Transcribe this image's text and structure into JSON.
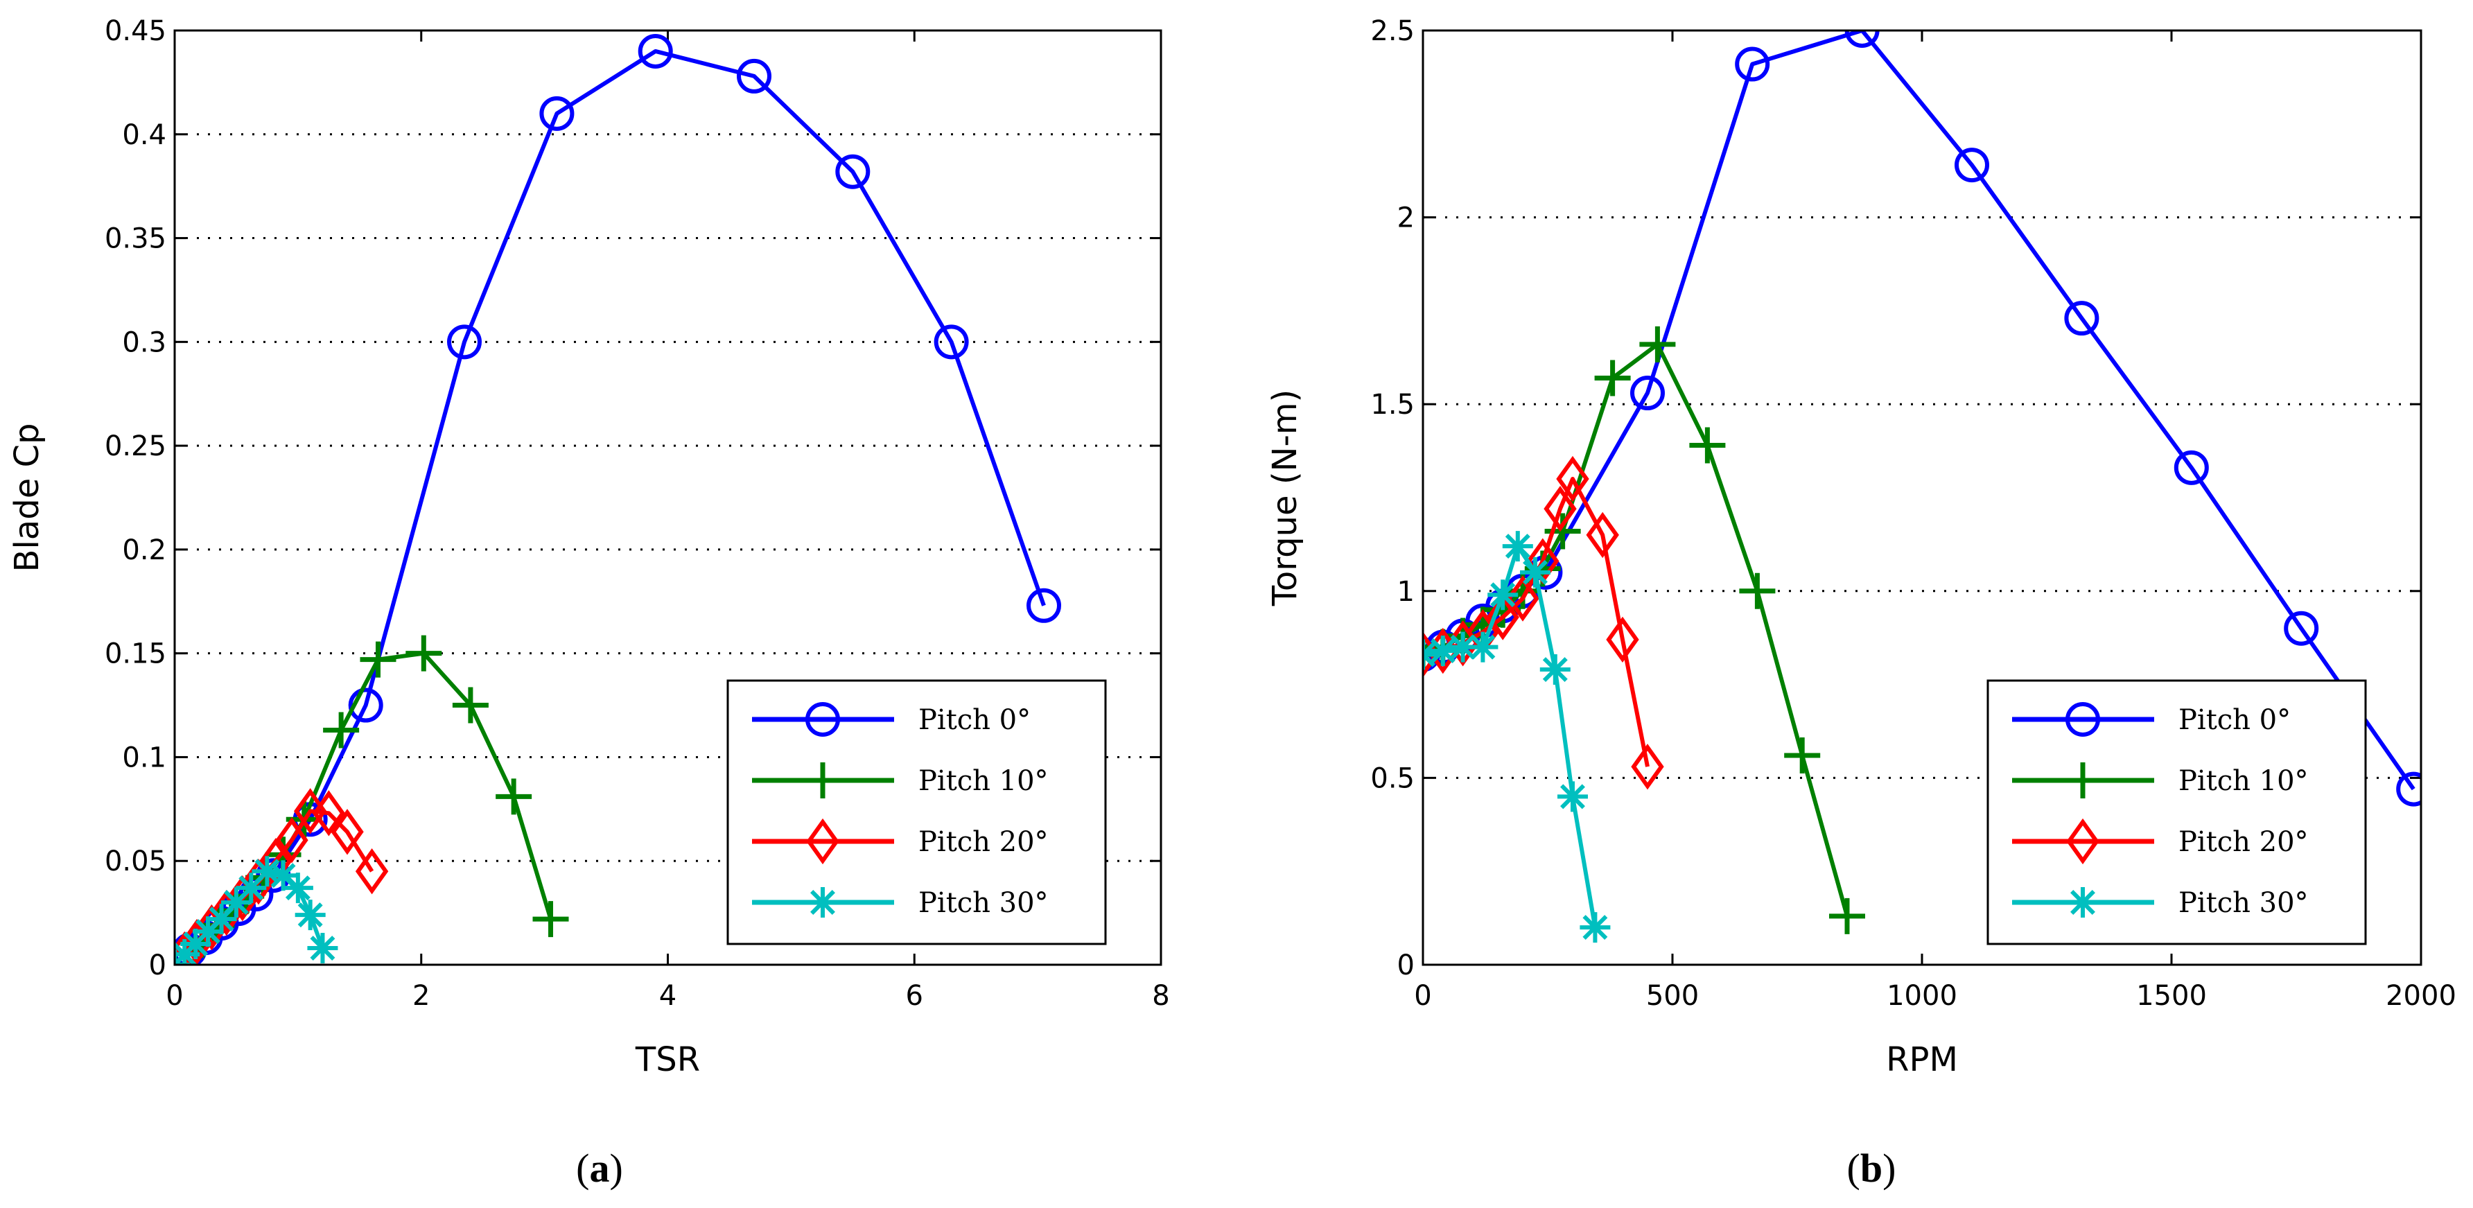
{
  "chart_data": [
    {
      "type": "line",
      "panel_label": "a",
      "xlabel": "TSR",
      "ylabel": "Blade Cp",
      "xlim": [
        0,
        8
      ],
      "ylim": [
        0,
        0.45
      ],
      "xticks": [
        "0",
        "2",
        "4",
        "6",
        "8"
      ],
      "yticks": [
        "0",
        "0.05",
        "0.1",
        "0.15",
        "0.2",
        "0.25",
        "0.3",
        "0.35",
        "0.4",
        "0.45"
      ],
      "grid": "horizontal dotted",
      "legend_position": "bottom-right",
      "series": [
        {
          "name": "Pitch 0°",
          "color": "#0000ff",
          "marker": "circle",
          "x": [
            0,
            0.12,
            0.25,
            0.38,
            0.52,
            0.66,
            0.8,
            1.1,
            1.55,
            2.35,
            3.1,
            3.9,
            4.7,
            5.5,
            6.3,
            7.05
          ],
          "y": [
            0,
            0.007,
            0.013,
            0.02,
            0.027,
            0.034,
            0.043,
            0.07,
            0.125,
            0.3,
            0.41,
            0.44,
            0.428,
            0.382,
            0.3,
            0.173
          ]
        },
        {
          "name": "Pitch 10°",
          "color": "#008000",
          "marker": "plus",
          "x": [
            0,
            0.1,
            0.22,
            0.34,
            0.46,
            0.58,
            0.72,
            0.88,
            1.05,
            1.35,
            1.65,
            2.02,
            2.4,
            2.75,
            3.05
          ],
          "y": [
            0,
            0.006,
            0.012,
            0.019,
            0.026,
            0.033,
            0.042,
            0.053,
            0.07,
            0.113,
            0.147,
            0.15,
            0.125,
            0.081,
            0.022
          ]
        },
        {
          "name": "Pitch 20°",
          "color": "#ff0000",
          "marker": "diamond",
          "x": [
            0,
            0.08,
            0.18,
            0.3,
            0.42,
            0.55,
            0.68,
            0.82,
            0.95,
            1.1,
            1.25,
            1.4,
            1.6
          ],
          "y": [
            0,
            0.005,
            0.011,
            0.018,
            0.025,
            0.032,
            0.04,
            0.05,
            0.06,
            0.074,
            0.073,
            0.064,
            0.045
          ]
        },
        {
          "name": "Pitch 30°",
          "color": "#00bfbf",
          "marker": "star",
          "x": [
            0,
            0.08,
            0.17,
            0.27,
            0.38,
            0.5,
            0.62,
            0.75,
            0.88,
            1.0,
            1.1,
            1.2
          ],
          "y": [
            0,
            0.005,
            0.01,
            0.016,
            0.022,
            0.03,
            0.037,
            0.045,
            0.043,
            0.037,
            0.024,
            0.008
          ]
        }
      ]
    },
    {
      "type": "line",
      "panel_label": "b",
      "xlabel": "RPM",
      "ylabel": "Torque (N-m)",
      "xlim": [
        0,
        2000
      ],
      "ylim": [
        0,
        2.5
      ],
      "xticks": [
        "0",
        "500",
        "1000",
        "1500",
        "2000"
      ],
      "yticks": [
        "0",
        "0.5",
        "1",
        "1.5",
        "2",
        "2.5"
      ],
      "grid": "horizontal dotted",
      "legend_position": "bottom-right",
      "series": [
        {
          "name": "Pitch 0°",
          "color": "#0000ff",
          "marker": "circle",
          "x": [
            0,
            40,
            80,
            120,
            160,
            200,
            245,
            450,
            660,
            880,
            1100,
            1320,
            1540,
            1760,
            1985
          ],
          "y": [
            0.83,
            0.85,
            0.88,
            0.92,
            0.96,
            1.0,
            1.05,
            1.53,
            2.41,
            2.5,
            2.14,
            1.73,
            1.33,
            0.9,
            0.47
          ]
        },
        {
          "name": "Pitch 10°",
          "color": "#008000",
          "marker": "plus",
          "x": [
            0,
            40,
            80,
            120,
            160,
            200,
            240,
            280,
            380,
            470,
            570,
            670,
            760,
            850
          ],
          "y": [
            0.83,
            0.85,
            0.88,
            0.91,
            0.95,
            1.0,
            1.06,
            1.16,
            1.57,
            1.66,
            1.39,
            1.0,
            0.56,
            0.13
          ]
        },
        {
          "name": "Pitch 20°",
          "color": "#ff0000",
          "marker": "diamond",
          "x": [
            0,
            40,
            80,
            120,
            160,
            200,
            240,
            275,
            300,
            360,
            400,
            450
          ],
          "y": [
            0.83,
            0.84,
            0.86,
            0.89,
            0.93,
            0.98,
            1.08,
            1.22,
            1.3,
            1.15,
            0.87,
            0.53
          ]
        },
        {
          "name": "Pitch 30°",
          "color": "#00bfbf",
          "marker": "star",
          "x": [
            0,
            40,
            80,
            120,
            160,
            190,
            225,
            265,
            300,
            345
          ],
          "y": [
            0.83,
            0.84,
            0.85,
            0.85,
            0.99,
            1.12,
            1.05,
            0.79,
            0.45,
            0.1
          ]
        }
      ]
    }
  ]
}
